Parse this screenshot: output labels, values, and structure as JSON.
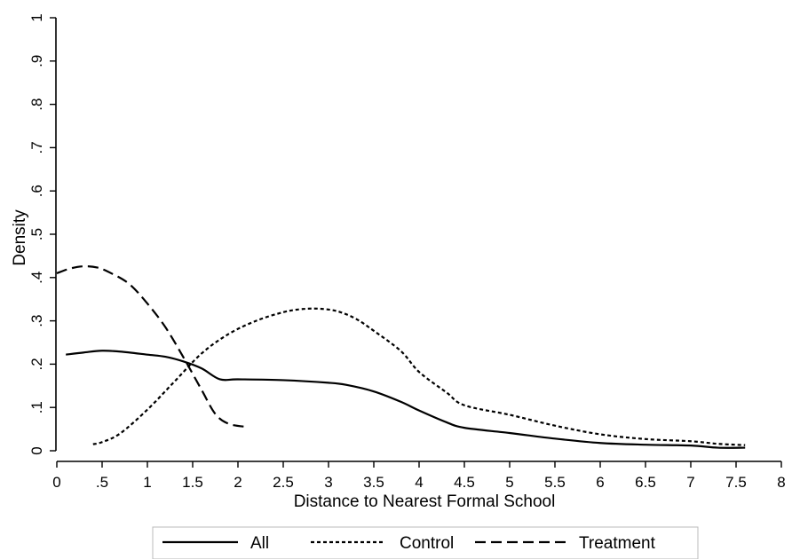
{
  "chart_data": {
    "type": "line",
    "title": "",
    "xlabel": "Distance to Nearest Formal School",
    "ylabel": "Density",
    "xlim": [
      0,
      8
    ],
    "ylim": [
      0,
      1
    ],
    "x_ticks": [
      0,
      0.5,
      1,
      1.5,
      2,
      2.5,
      3,
      3.5,
      4,
      4.5,
      5,
      5.5,
      6,
      6.5,
      7,
      7.5,
      8
    ],
    "x_tick_labels": [
      "0",
      ".5",
      "1",
      "1.5",
      "2",
      "2.5",
      "3",
      "3.5",
      "4",
      "4.5",
      "5",
      "5.5",
      "6",
      "6.5",
      "7",
      "7.5",
      "8"
    ],
    "y_ticks": [
      0,
      0.1,
      0.2,
      0.3,
      0.4,
      0.5,
      0.6,
      0.7,
      0.8,
      0.9,
      1
    ],
    "y_tick_labels": [
      "0",
      ".1",
      ".2",
      ".3",
      ".4",
      ".5",
      ".6",
      ".7",
      ".8",
      ".9",
      "1"
    ],
    "grid": false,
    "legend_position": "bottom",
    "series": [
      {
        "name": "All",
        "style": "solid",
        "x": [
          0.1,
          0.3,
          0.5,
          0.7,
          1.0,
          1.2,
          1.4,
          1.6,
          1.8,
          2.0,
          2.5,
          3.0,
          3.2,
          3.5,
          3.8,
          4.0,
          4.3,
          4.5,
          5.0,
          5.5,
          6.0,
          6.5,
          7.0,
          7.3,
          7.6
        ],
        "y": [
          0.222,
          0.227,
          0.231,
          0.229,
          0.222,
          0.217,
          0.206,
          0.19,
          0.165,
          0.165,
          0.163,
          0.157,
          0.152,
          0.137,
          0.113,
          0.093,
          0.066,
          0.053,
          0.041,
          0.028,
          0.018,
          0.014,
          0.012,
          0.007,
          0.007
        ]
      },
      {
        "name": "Control",
        "style": "dotted",
        "x": [
          0.4,
          0.5,
          0.7,
          1.0,
          1.3,
          1.6,
          1.9,
          2.2,
          2.5,
          2.7,
          2.9,
          3.1,
          3.3,
          3.5,
          3.8,
          4.0,
          4.3,
          4.5,
          5.0,
          5.5,
          6.0,
          6.5,
          7.0,
          7.3,
          7.6
        ],
        "y": [
          0.015,
          0.02,
          0.04,
          0.095,
          0.16,
          0.225,
          0.27,
          0.3,
          0.32,
          0.327,
          0.328,
          0.322,
          0.305,
          0.277,
          0.23,
          0.182,
          0.135,
          0.105,
          0.083,
          0.058,
          0.038,
          0.027,
          0.022,
          0.016,
          0.013
        ]
      },
      {
        "name": "Treatment",
        "style": "dashed",
        "x": [
          0.0,
          0.15,
          0.3,
          0.45,
          0.6,
          0.8,
          1.0,
          1.2,
          1.4,
          1.6,
          1.75,
          1.9,
          2.1
        ],
        "y": [
          0.41,
          0.421,
          0.426,
          0.423,
          0.41,
          0.385,
          0.34,
          0.285,
          0.215,
          0.14,
          0.085,
          0.062,
          0.055
        ]
      }
    ]
  }
}
